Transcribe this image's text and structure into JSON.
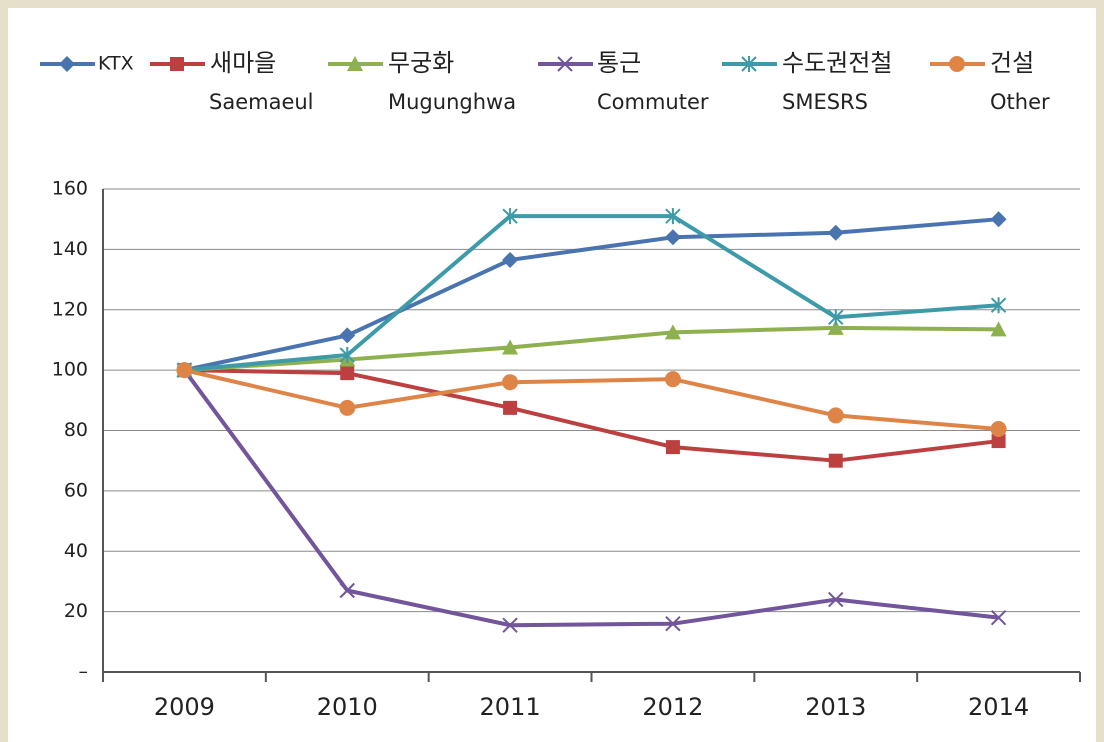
{
  "chart_data": {
    "type": "line",
    "categories": [
      "2009",
      "2010",
      "2011",
      "2012",
      "2013",
      "2014"
    ],
    "series": [
      {
        "name": "KTX",
        "color": "#4a74b0",
        "marker": "diamond",
        "values": [
          100,
          111.5,
          136.5,
          144,
          145.5,
          150
        ]
      },
      {
        "name": "새마을",
        "subtitle": "Saemaeul",
        "color": "#bd4040",
        "marker": "square",
        "values": [
          100,
          99,
          87.5,
          74.5,
          70,
          76.5
        ]
      },
      {
        "name": "무궁화",
        "subtitle": "Mugunghwa",
        "color": "#8eb04e",
        "marker": "triangle",
        "values": [
          100,
          103.5,
          107.5,
          112.5,
          114,
          113.5
        ]
      },
      {
        "name": "통근",
        "subtitle": "Commuter",
        "color": "#72559a",
        "marker": "x",
        "values": [
          100,
          27,
          15.5,
          16,
          24,
          18
        ]
      },
      {
        "name": "수도권전철",
        "subtitle": "SMESRS",
        "color": "#3d9aa8",
        "marker": "star",
        "values": [
          100,
          105,
          151,
          151,
          117.5,
          121.5
        ]
      },
      {
        "name": "건설",
        "subtitle": "Other",
        "color": "#df8447",
        "marker": "circle",
        "values": [
          100,
          87.5,
          96,
          97,
          85,
          80.5
        ]
      }
    ],
    "ylim": [
      0,
      160
    ],
    "yticks": [
      {
        "value": 0,
        "label": "–"
      },
      20,
      40,
      60,
      80,
      100,
      120,
      140,
      160
    ],
    "grid": true,
    "legend": "top"
  }
}
